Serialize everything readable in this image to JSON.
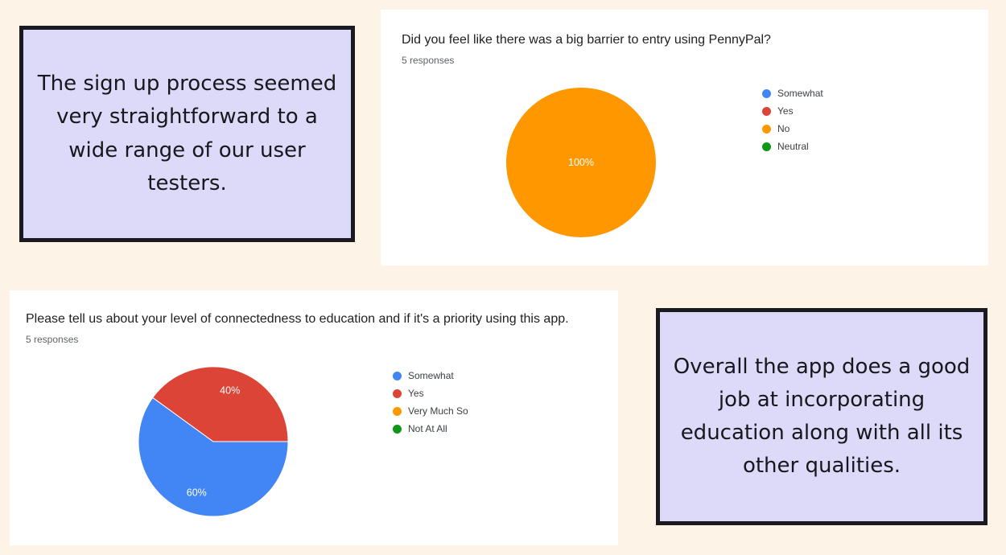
{
  "page": {
    "background_color": "#fdf3e7",
    "card_color": "#ffffff",
    "quote_box_color": "#dcd9f9",
    "quote_border_color": "#1b1a20"
  },
  "quote_boxes": [
    {
      "text": "The sign up process seemed very straightforward to a wide range of our user testers."
    },
    {
      "text": "Overall the app does a good job at incorporating education along with all its other qualities."
    }
  ],
  "chart_data": [
    {
      "type": "pie",
      "title": "Did you feel like there was a big barrier to entry using PennyPal?",
      "subtitle": "5 responses",
      "labels": [
        "Somewhat",
        "Yes",
        "No",
        "Neutral"
      ],
      "values": [
        0,
        0,
        5,
        0
      ],
      "percentages": [
        0,
        0,
        100,
        0
      ],
      "colors": [
        "#4285f4",
        "#db4437",
        "#ff9800",
        "#109618"
      ],
      "visible_slice_labels": [
        "100%"
      ],
      "slice_label_color": "#ffffff",
      "legend_position": "right"
    },
    {
      "type": "pie",
      "title": "Please tell us about your level of connectedness to education and if it's a priority using this app.",
      "subtitle": "5 responses",
      "labels": [
        "Somewhat",
        "Yes",
        "Very Much So",
        "Not At All"
      ],
      "values": [
        3,
        2,
        0,
        0
      ],
      "percentages": [
        60,
        40,
        0,
        0
      ],
      "colors": [
        "#4285f4",
        "#db4437",
        "#ff9800",
        "#109618"
      ],
      "visible_slice_labels": [
        "60%",
        "40%"
      ],
      "slice_label_color": "#ffffff",
      "legend_position": "right"
    }
  ]
}
